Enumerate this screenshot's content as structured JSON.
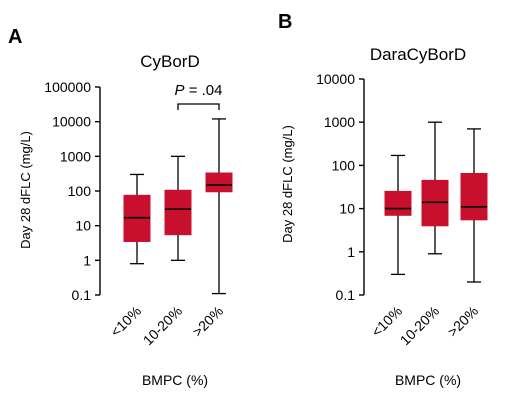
{
  "chart_data": [
    {
      "type": "box",
      "panel": "A",
      "title": "CyBorD",
      "ylabel": "Day 28 dFLC (mg/L)",
      "xlabel": "BMPC (%)",
      "yscale": "log",
      "ylim": [
        0.1,
        100000
      ],
      "yticks": [
        "100000",
        "10000",
        "1000",
        "100",
        "10",
        "1",
        "0.1"
      ],
      "categories": [
        "<10%",
        "10-20%",
        ">20%"
      ],
      "boxes": [
        {
          "min": 0.8,
          "q1": 3.5,
          "median": 17,
          "q3": 75,
          "max": 300
        },
        {
          "min": 1.0,
          "q1": 5.5,
          "median": 30,
          "q3": 105,
          "max": 1000
        },
        {
          "min": 0.11,
          "q1": 95,
          "median": 150,
          "q3": 330,
          "max": 12000
        }
      ],
      "annotation": {
        "prefix": "P",
        "text": " = .04",
        "from": 1,
        "to": 2
      },
      "color": "#c8102e"
    },
    {
      "type": "box",
      "panel": "B",
      "title": "DaraCyBorD",
      "ylabel": "Day 28 dFLC (mg/L)",
      "xlabel": "BMPC (%)",
      "yscale": "log",
      "ylim": [
        0.1,
        10000
      ],
      "yticks": [
        "10000",
        "1000",
        "100",
        "10",
        "1",
        "0.1"
      ],
      "categories": [
        "<10%",
        "10-20%",
        ">20%"
      ],
      "boxes": [
        {
          "min": 0.3,
          "q1": 7,
          "median": 10,
          "q3": 25,
          "max": 170
        },
        {
          "min": 0.9,
          "q1": 4,
          "median": 14,
          "q3": 45,
          "max": 1000
        },
        {
          "min": 0.2,
          "q1": 5.5,
          "median": 11,
          "q3": 65,
          "max": 700
        }
      ],
      "color": "#c8102e"
    }
  ]
}
